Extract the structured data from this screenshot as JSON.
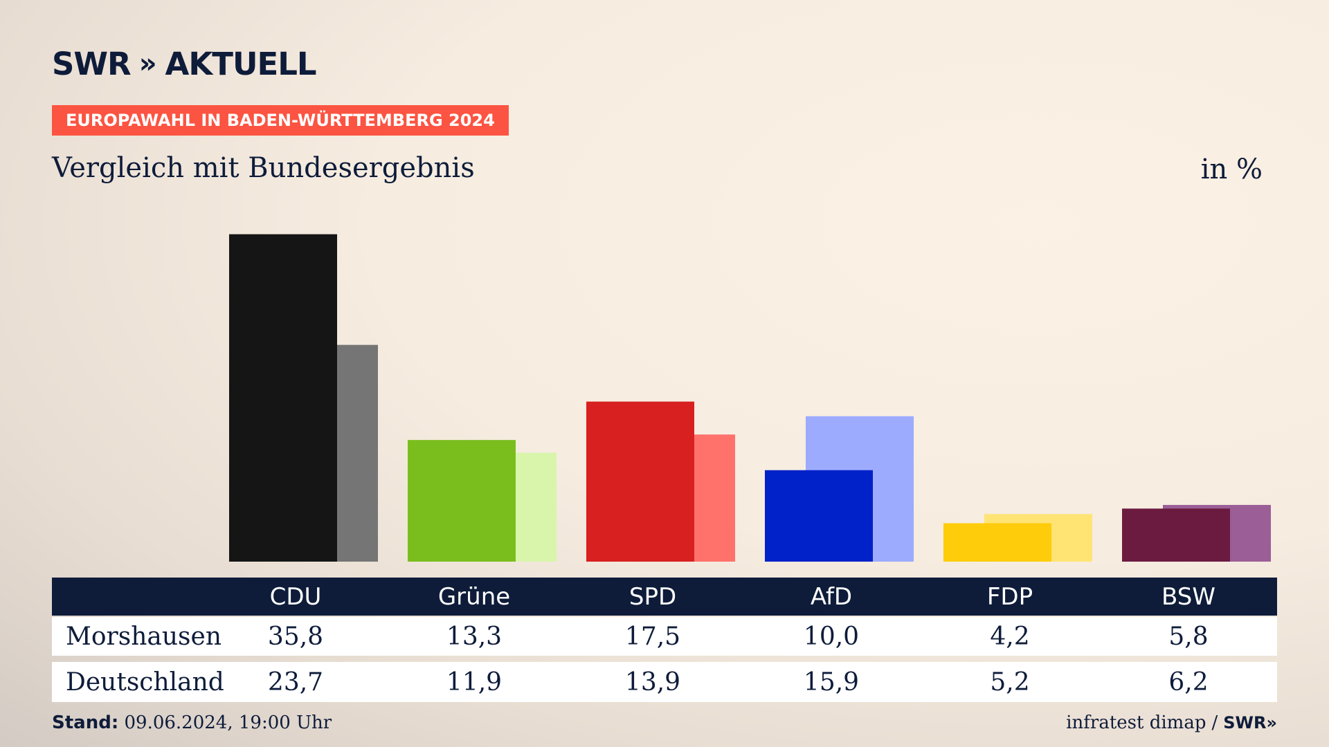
{
  "brand": {
    "logo_text": "SWR",
    "logo_chevrons": "»",
    "section": "AKTUELL"
  },
  "kicker": "EUROPAWAHL IN BADEN-WÜRTTEMBERG 2024",
  "subtitle": "Vergleich mit Bundesergebnis",
  "unit": "in %",
  "footer": {
    "stand_label": "Stand:",
    "stand_value": "09.06.2024, 19:00 Uhr",
    "source": "infratest dimap",
    "separator": "/",
    "source_brand": "SWR»"
  },
  "table": {
    "rows": [
      {
        "label": "Morshausen",
        "values": [
          "35,8",
          "13,3",
          "17,5",
          "10,0",
          "4,2",
          "5,8"
        ]
      },
      {
        "label": "Deutschland",
        "values": [
          "23,7",
          "11,9",
          "13,9",
          "15,9",
          "5,2",
          "6,2"
        ]
      }
    ]
  },
  "chart_data": {
    "type": "bar",
    "categories": [
      "CDU",
      "Grüne",
      "SPD",
      "AfD",
      "FDP",
      "BSW"
    ],
    "series": [
      {
        "name": "Morshausen",
        "values": [
          35.8,
          13.3,
          17.5,
          10.0,
          4.2,
          5.8
        ]
      },
      {
        "name": "Deutschland",
        "values": [
          23.7,
          11.9,
          13.9,
          15.9,
          5.2,
          6.2
        ]
      }
    ],
    "colors": {
      "Morshausen": [
        "#151515",
        "#7abe1e",
        "#d7201f",
        "#0022c8",
        "#ffcc0b",
        "#6b1a40"
      ],
      "Deutschland": [
        "#757575",
        "#d8f5ab",
        "#ff716b",
        "#9dabff",
        "#ffe474",
        "#9b5e97"
      ]
    },
    "ylim": [
      0,
      36
    ],
    "grid": false,
    "legend": "none"
  }
}
